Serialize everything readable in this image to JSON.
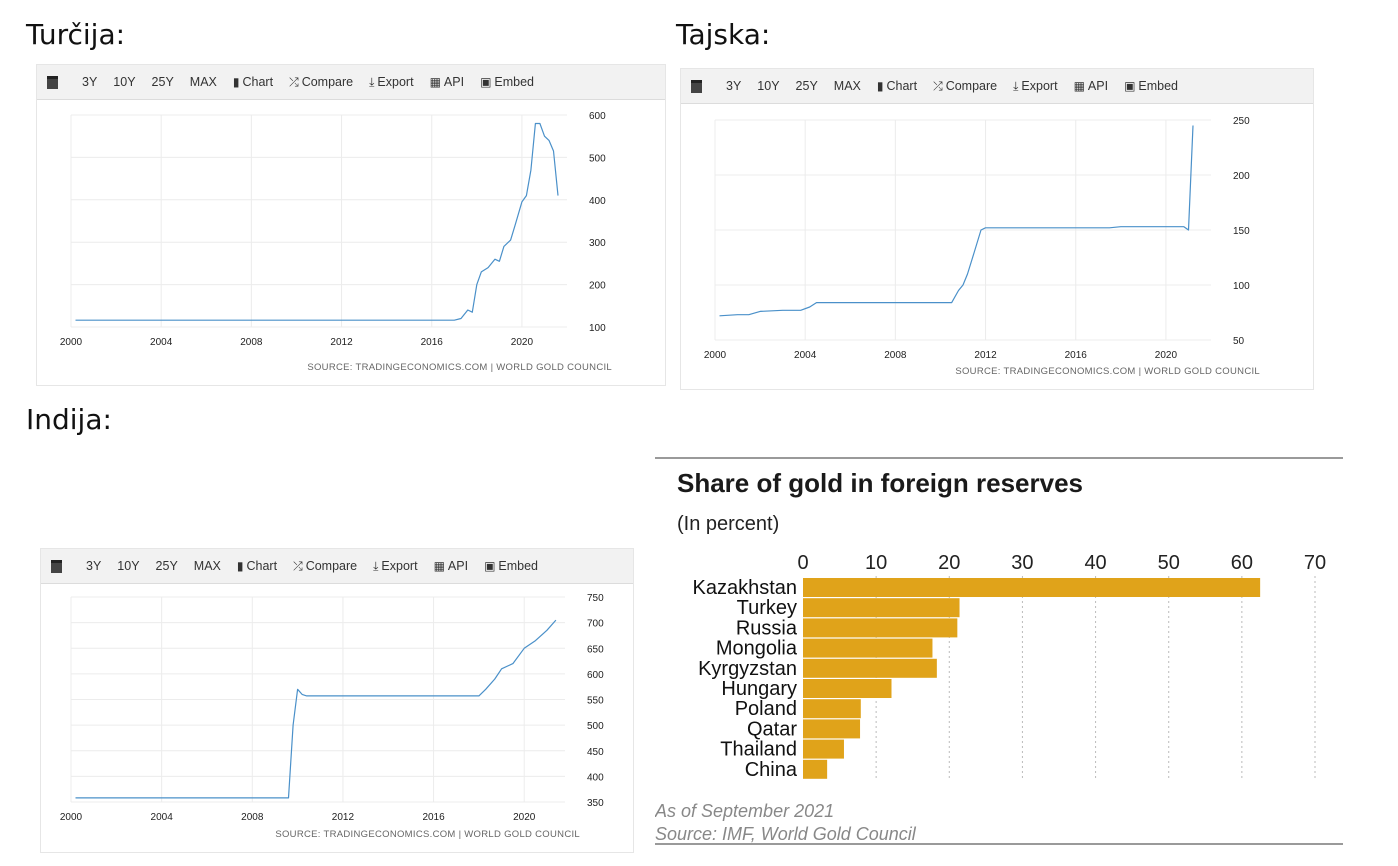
{
  "headings": {
    "turkey": "Turčija:",
    "thailand": "Tajska:",
    "india": "Indija:"
  },
  "toolbar": {
    "items": [
      {
        "label": "3Y"
      },
      {
        "label": "10Y"
      },
      {
        "label": "25Y"
      },
      {
        "label": "MAX"
      },
      {
        "label": "Chart",
        "icon": "bar-chart-icon"
      },
      {
        "label": "Compare",
        "icon": "shuffle-icon"
      },
      {
        "label": "Export",
        "icon": "download-icon"
      },
      {
        "label": "API",
        "icon": "grid-icon"
      },
      {
        "label": "Embed",
        "icon": "image-icon"
      }
    ]
  },
  "source_label": "SOURCE: TRADINGECONOMICS.COM | WORLD GOLD COUNCIL",
  "chart_data": [
    {
      "id": "turkey",
      "type": "line",
      "color": "#4a90c9",
      "xlim": [
        2000,
        2022
      ],
      "ylim": [
        100,
        600
      ],
      "xticks": [
        2000,
        2004,
        2008,
        2012,
        2016,
        2020
      ],
      "yticks": [
        100,
        200,
        300,
        400,
        500,
        600
      ],
      "x": [
        2000.2,
        2017.0,
        2017.3,
        2017.6,
        2017.8,
        2018.0,
        2018.2,
        2018.5,
        2018.8,
        2019.0,
        2019.2,
        2019.5,
        2019.7,
        2020.0,
        2020.2,
        2020.4,
        2020.6,
        2020.8,
        2021.0,
        2021.2,
        2021.4,
        2021.6
      ],
      "y": [
        116,
        116,
        120,
        140,
        135,
        200,
        230,
        240,
        260,
        255,
        290,
        305,
        340,
        395,
        410,
        470,
        580,
        580,
        550,
        540,
        515,
        410
      ]
    },
    {
      "id": "thailand",
      "type": "line",
      "color": "#4a90c9",
      "xlim": [
        2000,
        2022
      ],
      "ylim": [
        50,
        250
      ],
      "xticks": [
        2000,
        2004,
        2008,
        2012,
        2016,
        2020
      ],
      "yticks": [
        50,
        100,
        150,
        200,
        250
      ],
      "x": [
        2000.2,
        2001.0,
        2001.5,
        2002.0,
        2003.0,
        2003.8,
        2004.2,
        2004.5,
        2005.0,
        2010.5,
        2010.8,
        2011.0,
        2011.2,
        2011.5,
        2011.8,
        2012.0,
        2017.5,
        2018.0,
        2020.8,
        2021.0,
        2021.2
      ],
      "y": [
        72,
        73,
        73,
        76,
        77,
        77,
        80,
        84,
        84,
        84,
        95,
        100,
        110,
        130,
        150,
        152,
        152,
        153,
        153,
        150,
        245
      ]
    },
    {
      "id": "india",
      "type": "line",
      "color": "#4a90c9",
      "xlim": [
        2000,
        2021.8
      ],
      "ylim": [
        350,
        750
      ],
      "xticks": [
        2000,
        2004,
        2008,
        2012,
        2016,
        2020
      ],
      "yticks": [
        350,
        400,
        450,
        500,
        550,
        600,
        650,
        700,
        750
      ],
      "x": [
        2000.2,
        2009.6,
        2009.8,
        2010.0,
        2010.2,
        2010.4,
        2018.0,
        2018.3,
        2018.7,
        2019.0,
        2019.5,
        2020.0,
        2020.5,
        2021.0,
        2021.4
      ],
      "y": [
        358,
        358,
        500,
        570,
        560,
        557,
        557,
        570,
        590,
        610,
        620,
        650,
        665,
        685,
        705
      ]
    },
    {
      "id": "gold-share",
      "type": "bar",
      "orientation": "horizontal",
      "title": "Share of gold in foreign reserves",
      "subtitle": "(In percent)",
      "categories": [
        "Kazakhstan",
        "Turkey",
        "Russia",
        "Mongolia",
        "Kyrgyzstan",
        "Hungary",
        "Poland",
        "Qatar",
        "Thailand",
        "China"
      ],
      "values": [
        62.5,
        21.4,
        21.1,
        17.7,
        18.3,
        12.1,
        7.9,
        7.8,
        5.6,
        3.3
      ],
      "xlim": [
        0,
        70
      ],
      "xticks": [
        0,
        10,
        20,
        30,
        40,
        50,
        60,
        70
      ],
      "color": "#e0a31a",
      "note": "As of September 2021",
      "source": "Source: IMF, World Gold Council"
    }
  ]
}
